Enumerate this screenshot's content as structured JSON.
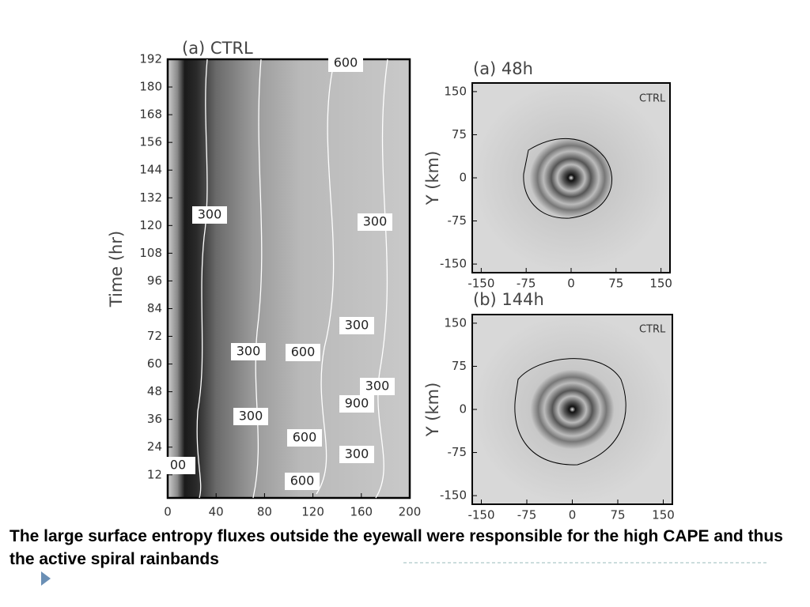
{
  "panels": [
    {
      "title": "(a)  CTRL",
      "y_label": "Time (hr)",
      "ylim": [
        2,
        192
      ],
      "yticks": [
        192,
        180,
        168,
        156,
        144,
        132,
        120,
        108,
        96,
        84,
        72,
        60,
        48,
        36,
        24,
        12
      ],
      "xlim": [
        0,
        200
      ],
      "xticks": [
        0,
        40,
        80,
        120,
        160,
        200
      ],
      "contour_labels": [
        "600",
        "300",
        "300",
        "300",
        "300",
        "600",
        "300",
        "900",
        "300",
        "600",
        "300",
        "600",
        "00"
      ]
    },
    {
      "title": "(a)  48h",
      "tag": "CTRL",
      "y_label": "Y (km)",
      "ylim": [
        -165,
        165
      ],
      "yticks": [
        150,
        75,
        0,
        -75,
        -150
      ],
      "xlim": [
        -165,
        165
      ],
      "xticks": [
        -150,
        -75,
        0,
        75,
        150
      ]
    },
    {
      "title": "(b)  144h",
      "tag": "CTRL",
      "y_label": "Y (km)",
      "ylim": [
        -165,
        165
      ],
      "yticks": [
        150,
        75,
        0,
        -75,
        -150
      ],
      "xlim": [
        -165,
        165
      ],
      "xticks": [
        -150,
        -75,
        0,
        75,
        150
      ]
    }
  ],
  "caption": "The large surface entropy fluxes outside the eyewall were responsible for the high CAPE and thus the active spiral rainbands"
}
